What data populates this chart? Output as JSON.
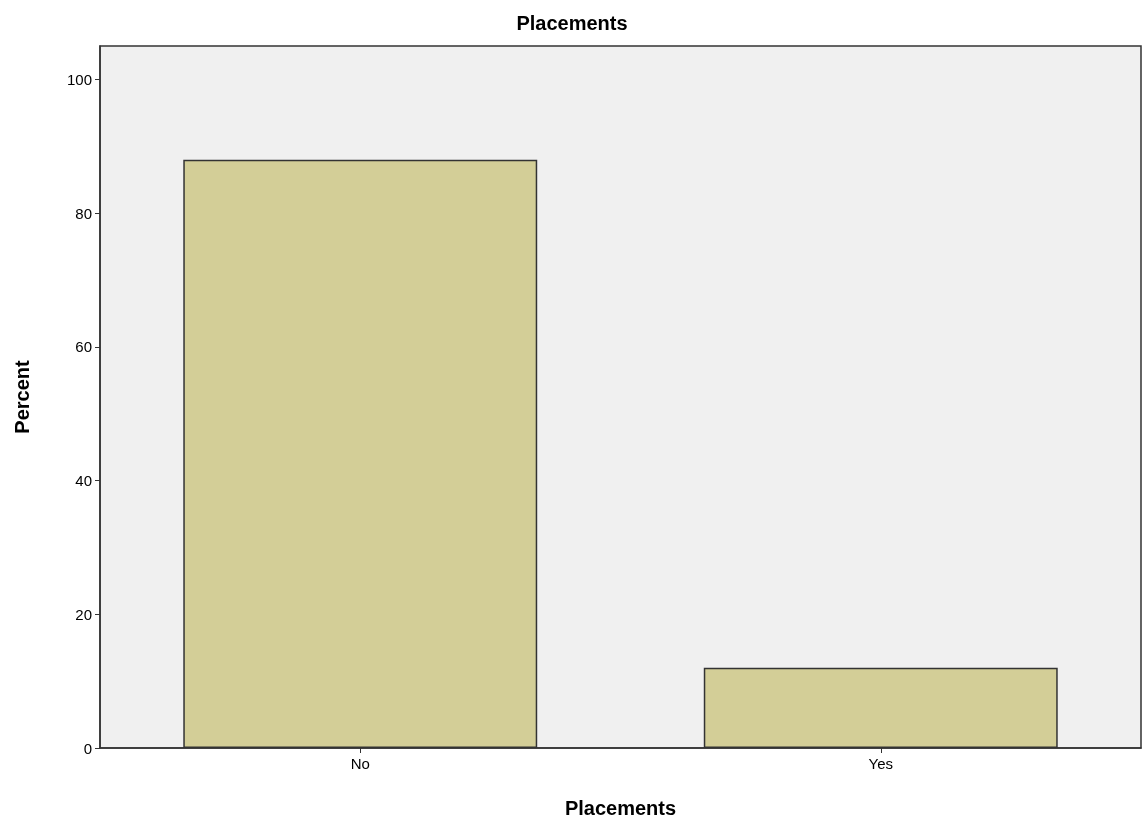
{
  "chart_data": {
    "type": "bar",
    "title": "Placements",
    "xlabel": "Placements",
    "ylabel": "Percent",
    "categories": [
      "No",
      "Yes"
    ],
    "values": [
      88,
      12
    ],
    "color": "#d3ce97",
    "ylim": [
      0,
      105
    ],
    "yticks": [
      0,
      20,
      40,
      60,
      80,
      100
    ]
  }
}
